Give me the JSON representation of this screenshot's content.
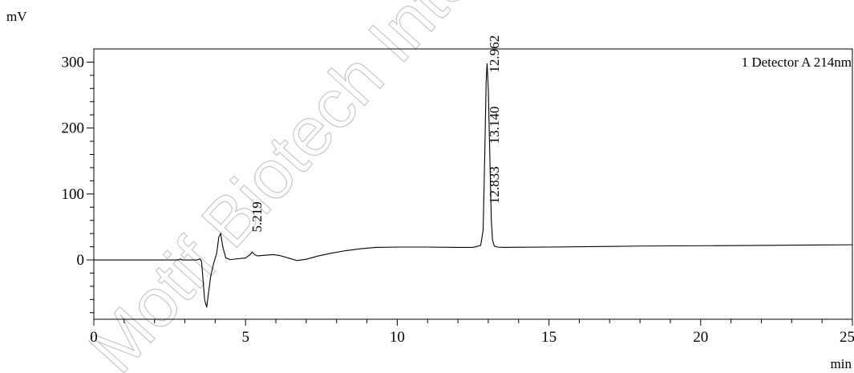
{
  "chart_data": {
    "type": "line",
    "x_unit": "min",
    "y_unit": "mV",
    "xlim": [
      0,
      25
    ],
    "ylim": [
      -90,
      320
    ],
    "x_ticks": [
      0,
      5,
      10,
      15,
      20,
      25
    ],
    "x_tick_labels": [
      "0",
      "5",
      "10",
      "15",
      "20",
      "25"
    ],
    "y_ticks": [
      0,
      100,
      200,
      300
    ],
    "y_tick_labels": [
      "0",
      "100",
      "200",
      "300"
    ],
    "grid": false,
    "legend_placement": "top-right",
    "legend_text": "1 Detector A 214nm",
    "series": [
      {
        "name": "1 Detector A 214nm",
        "color": "#000000",
        "x": [
          0,
          1,
          2,
          2.8,
          2.85,
          2.9,
          3.4,
          3.5,
          3.55,
          3.6,
          3.65,
          3.72,
          3.78,
          3.85,
          3.95,
          4.05,
          4.12,
          4.18,
          4.25,
          4.35,
          4.5,
          4.8,
          5.0,
          5.15,
          5.22,
          5.3,
          5.4,
          5.6,
          5.9,
          6.1,
          6.4,
          6.7,
          7.0,
          7.4,
          7.8,
          8.3,
          8.8,
          9.3,
          10,
          11,
          12,
          12.5,
          12.75,
          12.83,
          12.88,
          12.93,
          12.96,
          13.0,
          13.05,
          13.1,
          13.14,
          13.2,
          13.3,
          13.5,
          15,
          18,
          22,
          25
        ],
        "y": [
          0,
          0,
          0,
          0,
          1.5,
          0,
          0,
          1.5,
          -2,
          -30,
          -60,
          -72,
          -50,
          -25,
          -5,
          10,
          35,
          40,
          20,
          3,
          0.5,
          2,
          3,
          8,
          12,
          8,
          6,
          7,
          8,
          7,
          3,
          -1,
          1,
          6,
          10,
          14,
          17,
          19,
          19.5,
          19.5,
          19,
          19,
          22,
          45,
          150,
          270,
          298,
          260,
          160,
          60,
          30,
          21,
          19.5,
          19,
          19.5,
          21,
          22,
          23
        ]
      }
    ],
    "peak_labels": [
      {
        "text": "5.219",
        "x": 5.52,
        "y": 42
      },
      {
        "text": "12.833",
        "x": 13.35,
        "y": 85
      },
      {
        "text": "13.140",
        "x": 13.35,
        "y": 176
      },
      {
        "text": "12.962",
        "x": 13.35,
        "y": 284
      }
    ],
    "watermark": "Motif Biotech Inte"
  }
}
